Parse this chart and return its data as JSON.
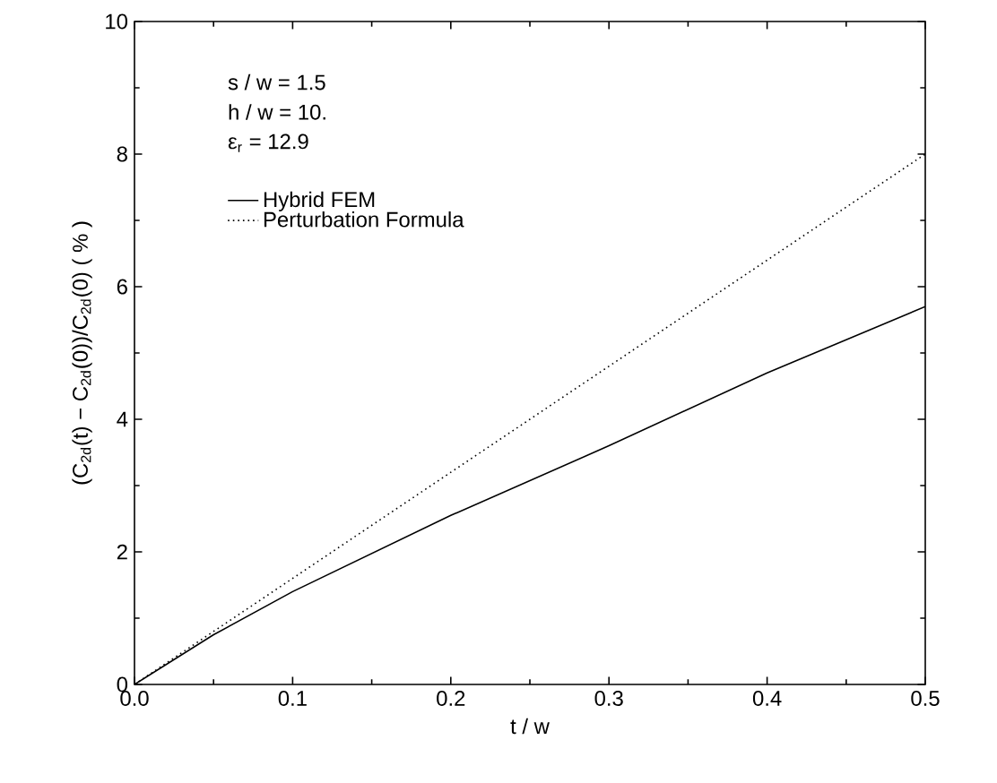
{
  "chart_data": {
    "type": "line",
    "xlabel": "t / w",
    "ylabel": "(C$_{2d}$(t) − C$_{2d}$(0))/C$_{2d}$(0)  ( % )",
    "x": [
      0.0,
      0.05,
      0.1,
      0.2,
      0.3,
      0.4,
      0.5
    ],
    "series": [
      {
        "name": "Hybrid FEM",
        "color": "#000000",
        "line_style": "solid",
        "values": [
          0,
          0.75,
          1.4,
          2.55,
          3.6,
          4.7,
          5.7
        ]
      },
      {
        "name": "Perturbation Formula",
        "color": "#000000",
        "line_style": "dotted",
        "x": [
          0.0,
          0.1,
          0.2,
          0.3,
          0.4,
          0.5
        ],
        "values": [
          0,
          1.6,
          3.2,
          4.8,
          6.4,
          8.0
        ]
      }
    ],
    "annotations": [
      "s / w = 1.5",
      "h / w = 10.",
      "ε$_{r}$ = 12.9"
    ],
    "xlim": [
      0,
      0.5
    ],
    "ylim": [
      0,
      10
    ],
    "xticks": [
      {
        "value": 0,
        "label": "0.0"
      },
      0.1,
      0.2,
      0.3,
      0.4,
      0.5
    ],
    "yticks": [
      0,
      2,
      4,
      6,
      8,
      10
    ],
    "legend": "top left",
    "marker": "none",
    "grid": false
  }
}
